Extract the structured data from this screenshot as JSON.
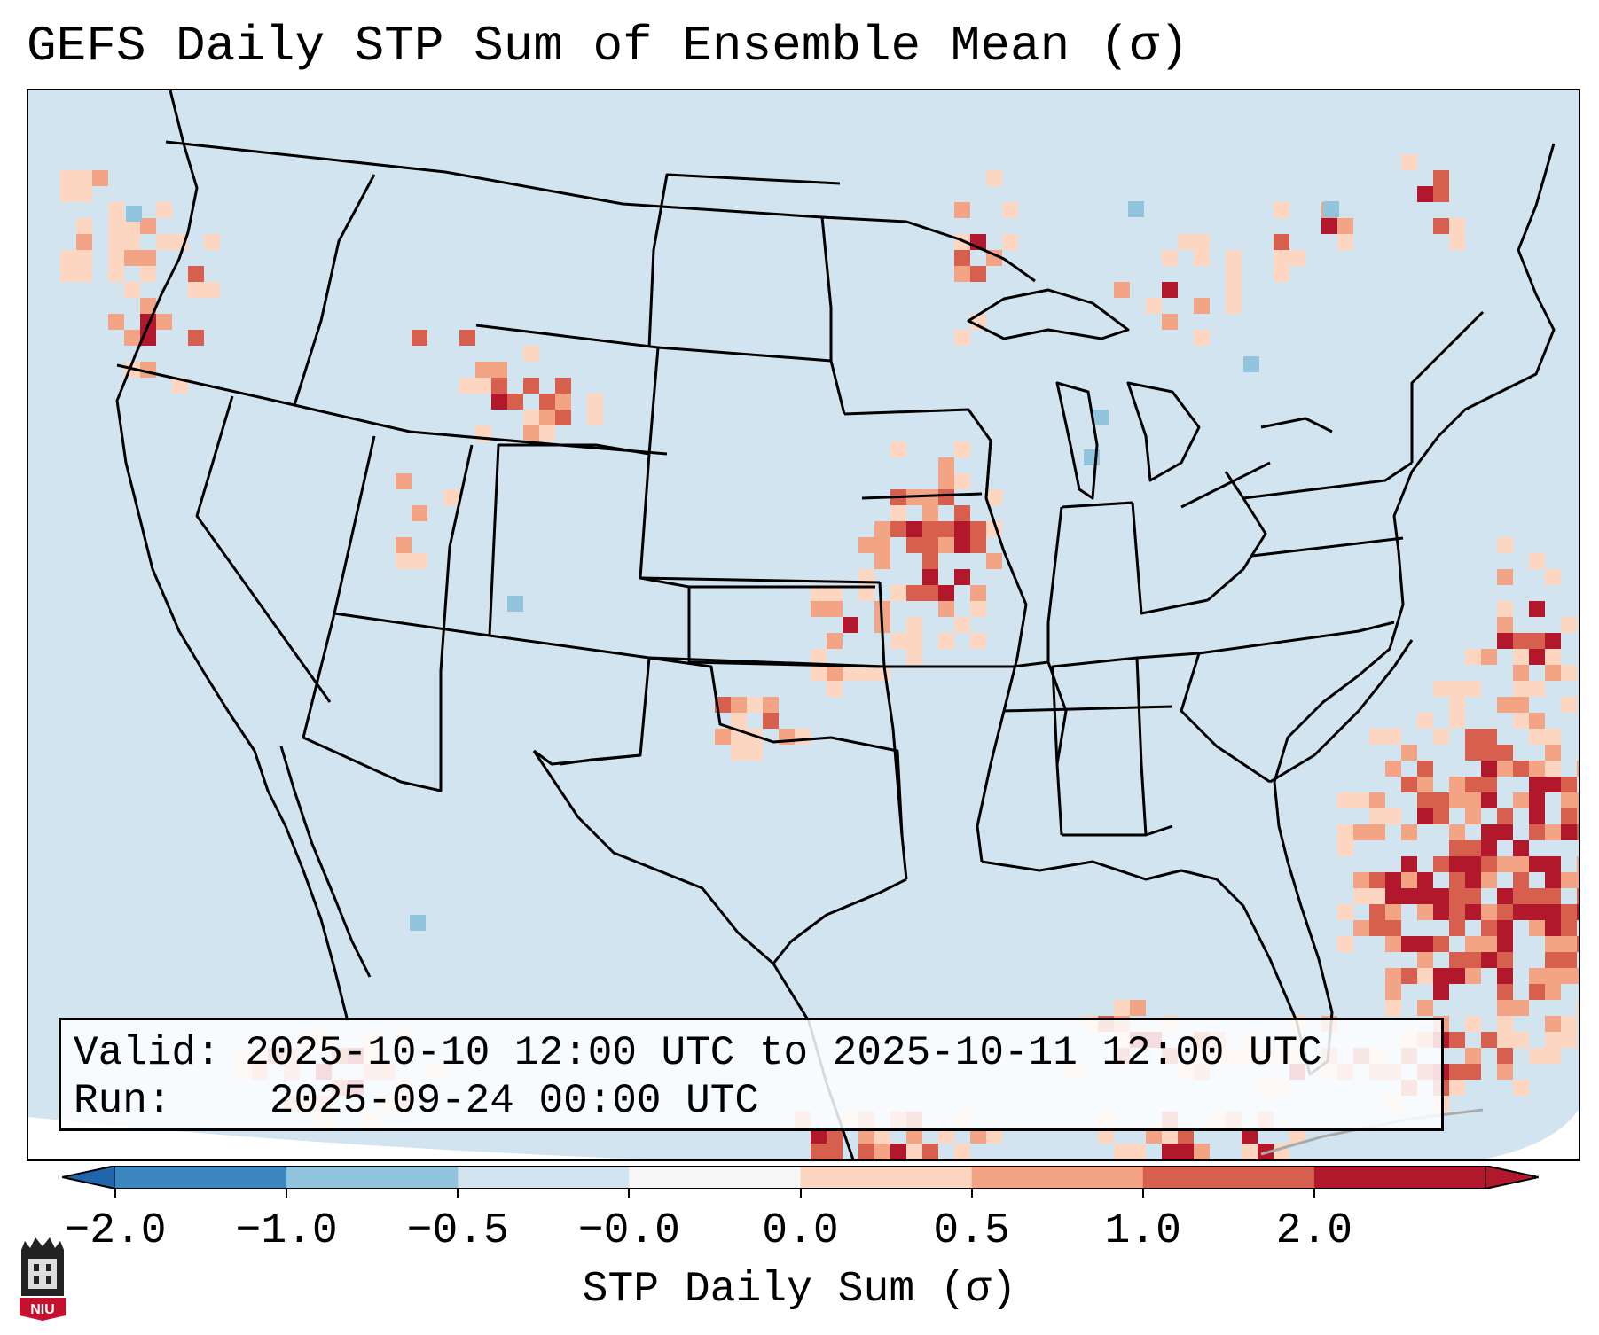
{
  "title": "GEFS Daily STP Sum of Ensemble Mean (σ)",
  "info": {
    "valid_label": "Valid:",
    "valid_value": "2025-10-10 12:00 UTC to 2025-10-11 12:00 UTC",
    "run_label": "Run:",
    "run_value": "2025-09-24 00:00 UTC"
  },
  "colorbar": {
    "label": "STP Daily Sum (σ)",
    "ticks": [
      "−2.0",
      "−1.0",
      "−0.5",
      "−0.0",
      "0.0",
      "0.5",
      "1.0",
      "2.0"
    ],
    "colors": [
      "#3b88c0",
      "#93c4de",
      "#d1e4ef",
      "#f7f7f7",
      "#fcd6c1",
      "#f2a484",
      "#d6604d",
      "#b2182b"
    ],
    "under_color": "#2166ac",
    "over_color": "#b2182b"
  },
  "map": {
    "background_color": "#d1e4ef",
    "region": "Contiguous United States"
  },
  "logo": {
    "text": "NIU"
  }
}
